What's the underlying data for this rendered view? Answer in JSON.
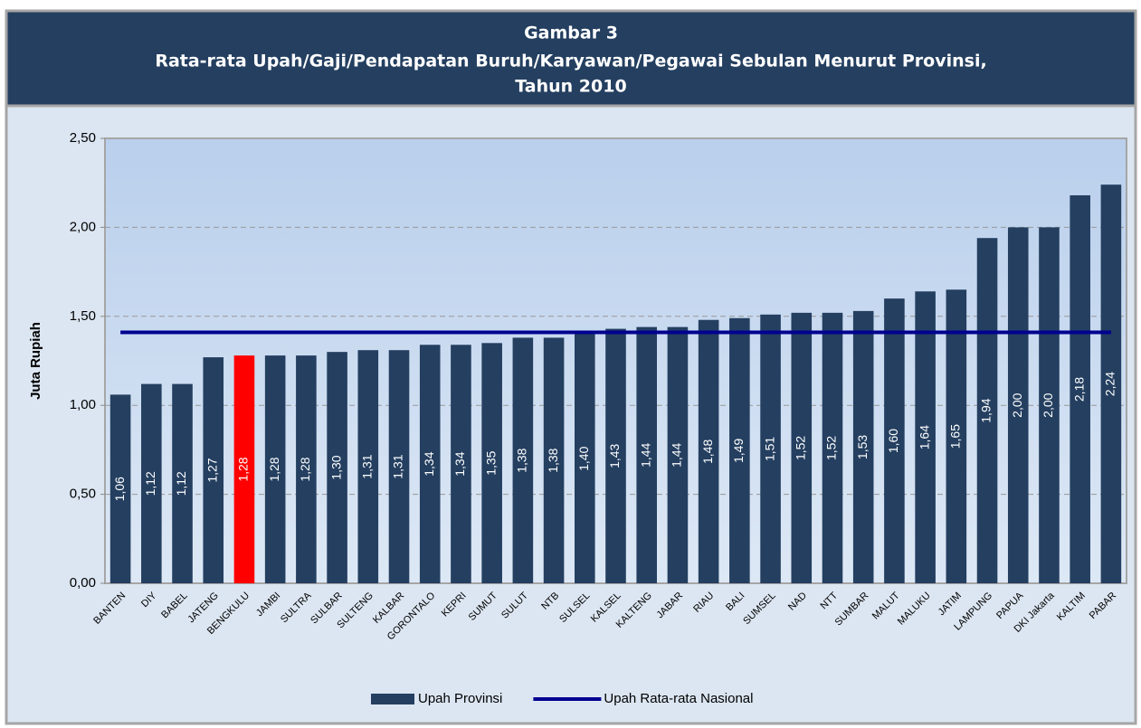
{
  "chart_data": {
    "type": "bar",
    "title": [
      "Gambar 3",
      "Rata-rata Upah/Gaji/Pendapatan Buruh/Karyawan/Pegawai Sebulan Menurut Provinsi,",
      "Tahun 2010"
    ],
    "y_label": "Juta Rupiah",
    "categories": [
      "BANTEN",
      "DIY",
      "BABEL",
      "JATENG",
      "BENGKULU",
      "JAMBI",
      "SULTRA",
      "SULBAR",
      "SULTENG",
      "KALBAR",
      "GORONTALO",
      "KEPRI",
      "SUMUT",
      "SULUT",
      "NTB",
      "SULSEL",
      "KALSEL",
      "KALTENG",
      "JABAR",
      "RIAU",
      "BALI",
      "SUMSEL",
      "NAD",
      "NTT",
      "SUMBAR",
      "MALUT",
      "MALUKU",
      "JATIM",
      "LAMPUNG",
      "PAPUA",
      "DKI Jakarta",
      "KALTIM",
      "PABAR"
    ],
    "series": [
      {
        "name": "Upah Provinsi",
        "type": "bar",
        "color": "#243f60",
        "colors": [
          "#243f60",
          "#243f60",
          "#243f60",
          "#243f60",
          "#ff0000",
          "#243f60",
          "#243f60",
          "#243f60",
          "#243f60",
          "#243f60",
          "#243f60",
          "#243f60",
          "#243f60",
          "#243f60",
          "#243f60",
          "#243f60",
          "#243f60",
          "#243f60",
          "#243f60",
          "#243f60",
          "#243f60",
          "#243f60",
          "#243f60",
          "#243f60",
          "#243f60",
          "#243f60",
          "#243f60",
          "#243f60",
          "#243f60",
          "#243f60",
          "#243f60",
          "#243f60",
          "#243f60"
        ],
        "values": [
          1.06,
          1.12,
          1.12,
          1.27,
          1.28,
          1.28,
          1.28,
          1.3,
          1.31,
          1.31,
          1.34,
          1.34,
          1.35,
          1.38,
          1.38,
          1.4,
          1.43,
          1.44,
          1.44,
          1.48,
          1.49,
          1.51,
          1.52,
          1.52,
          1.53,
          1.6,
          1.64,
          1.65,
          1.94,
          2.0,
          2.0,
          2.18,
          2.24
        ],
        "value_labels": [
          "1,06",
          "1,12",
          "1,12",
          "1,27",
          "1,28",
          "1,28",
          "1,28",
          "1,30",
          "1,31",
          "1,31",
          "1,34",
          "1,34",
          "1,35",
          "1,38",
          "1,38",
          "1,40",
          "1,43",
          "1,44",
          "1,44",
          "1,48",
          "1,49",
          "1,51",
          "1,52",
          "1,52",
          "1,53",
          "1,60",
          "1,64",
          "1,65",
          "1,94",
          "2,00",
          "2,00",
          "2,18",
          "2,24"
        ]
      },
      {
        "name": "Upah Rata-rata Nasional",
        "type": "line",
        "color": "#000090",
        "values": [
          1.41,
          1.41,
          1.41,
          1.41,
          1.41,
          1.41,
          1.41,
          1.41,
          1.41,
          1.41,
          1.41,
          1.41,
          1.41,
          1.41,
          1.41,
          1.41,
          1.41,
          1.41,
          1.41,
          1.41,
          1.41,
          1.41,
          1.41,
          1.41,
          1.41,
          1.41,
          1.41,
          1.41,
          1.41,
          1.41,
          1.41,
          1.41,
          1.41
        ]
      }
    ],
    "ylim": [
      0,
      2.5
    ],
    "yticks": [
      {
        "value": 0,
        "label": "0,00"
      },
      {
        "value": 0.5,
        "label": "0,50"
      },
      {
        "value": 1,
        "label": "1,00"
      },
      {
        "value": 1.5,
        "label": "1,50"
      },
      {
        "value": 2,
        "label": "2,00"
      },
      {
        "value": 2.5,
        "label": "2,50"
      }
    ],
    "grid": true,
    "legend": "bottom"
  }
}
